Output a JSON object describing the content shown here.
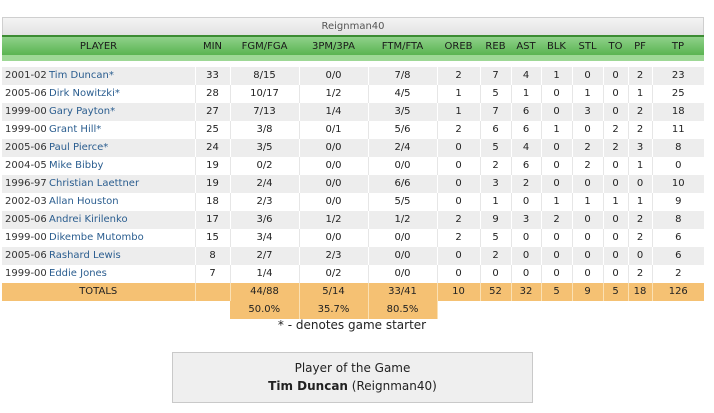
{
  "team_name": "Reignman40",
  "columns": [
    "PLAYER",
    "MIN",
    "FGM/FGA",
    "3PM/3PA",
    "FTM/FTA",
    "OREB",
    "REB",
    "AST",
    "BLK",
    "STL",
    "TO",
    "PF",
    "TP"
  ],
  "players": [
    {
      "season": "2001-02",
      "name": "Tim Duncan*",
      "min": "33",
      "fg": "8/15",
      "tp3": "0/0",
      "ft": "7/8",
      "oreb": "2",
      "reb": "7",
      "ast": "4",
      "blk": "1",
      "stl": "0",
      "to": "0",
      "pf": "2",
      "tp": "23"
    },
    {
      "season": "2005-06",
      "name": "Dirk Nowitzki*",
      "min": "28",
      "fg": "10/17",
      "tp3": "1/2",
      "ft": "4/5",
      "oreb": "1",
      "reb": "5",
      "ast": "1",
      "blk": "0",
      "stl": "1",
      "to": "0",
      "pf": "1",
      "tp": "25"
    },
    {
      "season": "1999-00",
      "name": "Gary Payton*",
      "min": "27",
      "fg": "7/13",
      "tp3": "1/4",
      "ft": "3/5",
      "oreb": "1",
      "reb": "7",
      "ast": "6",
      "blk": "0",
      "stl": "3",
      "to": "0",
      "pf": "2",
      "tp": "18"
    },
    {
      "season": "1999-00",
      "name": "Grant Hill*",
      "min": "25",
      "fg": "3/8",
      "tp3": "0/1",
      "ft": "5/6",
      "oreb": "2",
      "reb": "6",
      "ast": "6",
      "blk": "1",
      "stl": "0",
      "to": "2",
      "pf": "2",
      "tp": "11"
    },
    {
      "season": "2005-06",
      "name": "Paul Pierce*",
      "min": "24",
      "fg": "3/5",
      "tp3": "0/0",
      "ft": "2/4",
      "oreb": "0",
      "reb": "5",
      "ast": "4",
      "blk": "0",
      "stl": "2",
      "to": "2",
      "pf": "3",
      "tp": "8"
    },
    {
      "season": "2004-05",
      "name": "Mike Bibby",
      "min": "19",
      "fg": "0/2",
      "tp3": "0/0",
      "ft": "0/0",
      "oreb": "0",
      "reb": "2",
      "ast": "6",
      "blk": "0",
      "stl": "2",
      "to": "0",
      "pf": "1",
      "tp": "0"
    },
    {
      "season": "1996-97",
      "name": "Christian Laettner",
      "min": "19",
      "fg": "2/4",
      "tp3": "0/0",
      "ft": "6/6",
      "oreb": "0",
      "reb": "3",
      "ast": "2",
      "blk": "0",
      "stl": "0",
      "to": "0",
      "pf": "0",
      "tp": "10"
    },
    {
      "season": "2002-03",
      "name": "Allan Houston",
      "min": "18",
      "fg": "2/3",
      "tp3": "0/0",
      "ft": "5/5",
      "oreb": "0",
      "reb": "1",
      "ast": "0",
      "blk": "1",
      "stl": "1",
      "to": "1",
      "pf": "1",
      "tp": "9"
    },
    {
      "season": "2005-06",
      "name": "Andrei Kirilenko",
      "min": "17",
      "fg": "3/6",
      "tp3": "1/2",
      "ft": "1/2",
      "oreb": "2",
      "reb": "9",
      "ast": "3",
      "blk": "2",
      "stl": "0",
      "to": "0",
      "pf": "2",
      "tp": "8"
    },
    {
      "season": "1999-00",
      "name": "Dikembe Mutombo",
      "min": "15",
      "fg": "3/4",
      "tp3": "0/0",
      "ft": "0/0",
      "oreb": "2",
      "reb": "5",
      "ast": "0",
      "blk": "0",
      "stl": "0",
      "to": "0",
      "pf": "2",
      "tp": "6"
    },
    {
      "season": "2005-06",
      "name": "Rashard Lewis",
      "min": "8",
      "fg": "2/7",
      "tp3": "2/3",
      "ft": "0/0",
      "oreb": "0",
      "reb": "2",
      "ast": "0",
      "blk": "0",
      "stl": "0",
      "to": "0",
      "pf": "0",
      "tp": "6"
    },
    {
      "season": "1999-00",
      "name": "Eddie Jones",
      "min": "7",
      "fg": "1/4",
      "tp3": "0/2",
      "ft": "0/0",
      "oreb": "0",
      "reb": "0",
      "ast": "0",
      "blk": "0",
      "stl": "0",
      "to": "0",
      "pf": "2",
      "tp": "2"
    }
  ],
  "totals": {
    "label": "TOTALS",
    "fg": "44/88",
    "tp3": "5/14",
    "ft": "33/41",
    "oreb": "10",
    "reb": "52",
    "ast": "32",
    "blk": "5",
    "stl": "9",
    "to": "5",
    "pf": "18",
    "tp": "126",
    "fg_pct": "50.0%",
    "tp3_pct": "35.7%",
    "ft_pct": "80.5%"
  },
  "starter_note": "* - denotes game starter",
  "player_of_game": {
    "title": "Player of the Game",
    "name": "Tim Duncan",
    "team": "(Reignman40)"
  }
}
